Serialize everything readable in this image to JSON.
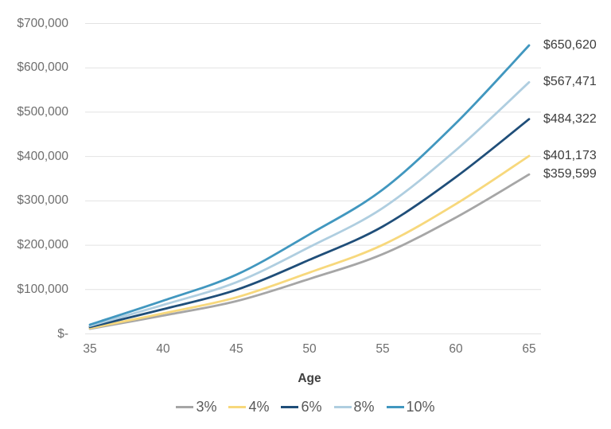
{
  "chart_data": {
    "type": "line",
    "title": "",
    "xlabel": "Age",
    "ylabel": "",
    "x": [
      35,
      40,
      45,
      50,
      55,
      60,
      65
    ],
    "x_ticks": [
      "35",
      "40",
      "45",
      "50",
      "55",
      "60",
      "65"
    ],
    "y_ticks": [
      "$-",
      "$100,000",
      "$200,000",
      "$300,000",
      "$400,000",
      "$500,000",
      "$600,000",
      "$700,000"
    ],
    "ylim": [
      0,
      700000
    ],
    "grid": "horizontal",
    "legend_position": "bottom",
    "colors": {
      "gridline": "#e2e2e2",
      "tick_text": "#6e6e6e",
      "end_label_text": "#3d3d3d",
      "legend_text": "#595959"
    },
    "series": [
      {
        "name": "3%",
        "color": "#a6a6a6",
        "end_label": "$359,599",
        "values": [
          11500,
          41350,
          73700,
          124100,
          179800,
          262500,
          359599
        ]
      },
      {
        "name": "4%",
        "color": "#f7d87c",
        "end_label": "$401,173",
        "values": [
          12800,
          46150,
          82250,
          138400,
          200600,
          292900,
          401173
        ]
      },
      {
        "name": "6%",
        "color": "#1f4e79",
        "end_label": "$484,322",
        "values": [
          15500,
          55700,
          99300,
          167100,
          242200,
          353600,
          484322
        ]
      },
      {
        "name": "8%",
        "color": "#afcee0",
        "end_label": "$567,471",
        "values": [
          18150,
          65250,
          116300,
          195800,
          283700,
          414300,
          567471
        ]
      },
      {
        "name": "10%",
        "color": "#4197bf",
        "end_label": "$650,620",
        "values": [
          20800,
          74800,
          133400,
          224500,
          325300,
          475000,
          650620
        ]
      }
    ]
  }
}
